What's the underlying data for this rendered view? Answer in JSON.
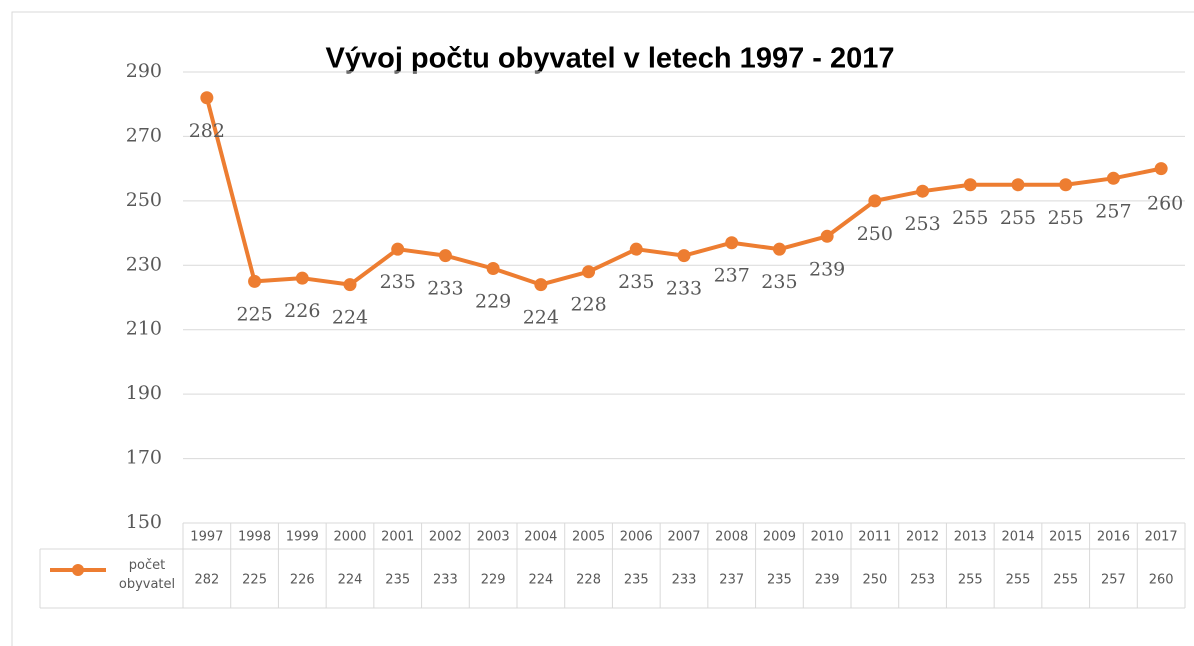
{
  "chart_data": {
    "type": "line",
    "title": "Vývoj počtu obyvatel v letech 1997 - 2017",
    "categories": [
      "1997",
      "1998",
      "1999",
      "2000",
      "2001",
      "2002",
      "2003",
      "2004",
      "2005",
      "2006",
      "2007",
      "2008",
      "2009",
      "2010",
      "2011",
      "2012",
      "2013",
      "2014",
      "2015",
      "2016",
      "2017"
    ],
    "series": [
      {
        "name": "počet obyvatel",
        "color": "#ed7d31",
        "values": [
          282,
          225,
          226,
          224,
          235,
          233,
          229,
          224,
          228,
          235,
          233,
          237,
          235,
          239,
          250,
          253,
          255,
          255,
          255,
          257,
          260
        ]
      }
    ],
    "ylim": [
      150,
      290
    ],
    "yticks": [
      150,
      170,
      190,
      210,
      230,
      250,
      270,
      290
    ],
    "grid": true,
    "data_table": true
  }
}
